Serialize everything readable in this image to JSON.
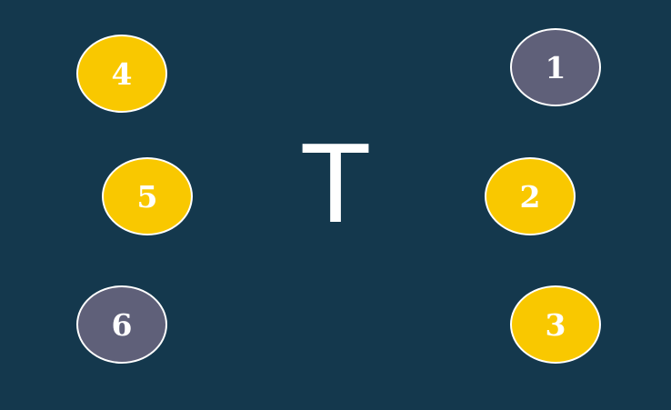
{
  "colors": {
    "background": "#14384d",
    "gold": "#f9c800",
    "slate": "#5f6079",
    "border": "#ffffff",
    "text": "#ffffff"
  },
  "center_letter": "T",
  "tokens": [
    {
      "label": "1",
      "color": "#5f6079"
    },
    {
      "label": "2",
      "color": "#f9c800"
    },
    {
      "label": "3",
      "color": "#f9c800"
    },
    {
      "label": "4",
      "color": "#f9c800"
    },
    {
      "label": "5",
      "color": "#f9c800"
    },
    {
      "label": "6",
      "color": "#5f6079"
    }
  ]
}
